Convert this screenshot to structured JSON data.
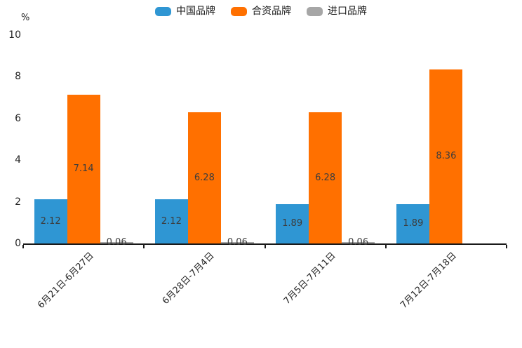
{
  "chart_data": {
    "type": "bar",
    "title": "",
    "ylabel": "%",
    "xlabel": "",
    "ylim": [
      0,
      10
    ],
    "yticks": [
      0,
      2,
      4,
      6,
      8,
      10
    ],
    "grid": false,
    "legend_position": "top-center",
    "bar_value_labels": true,
    "categories": [
      "6月21日-6月27日",
      "6月28日-7月4日",
      "7月5日-7月11日",
      "7月12日-7月18日"
    ],
    "series": [
      {
        "name": "中国品牌",
        "color": "#2f96d3",
        "values": [
          2.12,
          2.12,
          1.89,
          1.89
        ]
      },
      {
        "name": "合资品牌",
        "color": "#ff7000",
        "values": [
          7.14,
          6.28,
          6.28,
          8.36
        ]
      },
      {
        "name": "进口品牌",
        "color": "#a6a6a6",
        "values": [
          0.06,
          0.06,
          0.06,
          null
        ]
      }
    ],
    "colors": {
      "axis": "#1a1a1a",
      "tick_label": "#262626",
      "value_label": "#3c3c3c",
      "background": "#ffffff"
    }
  }
}
